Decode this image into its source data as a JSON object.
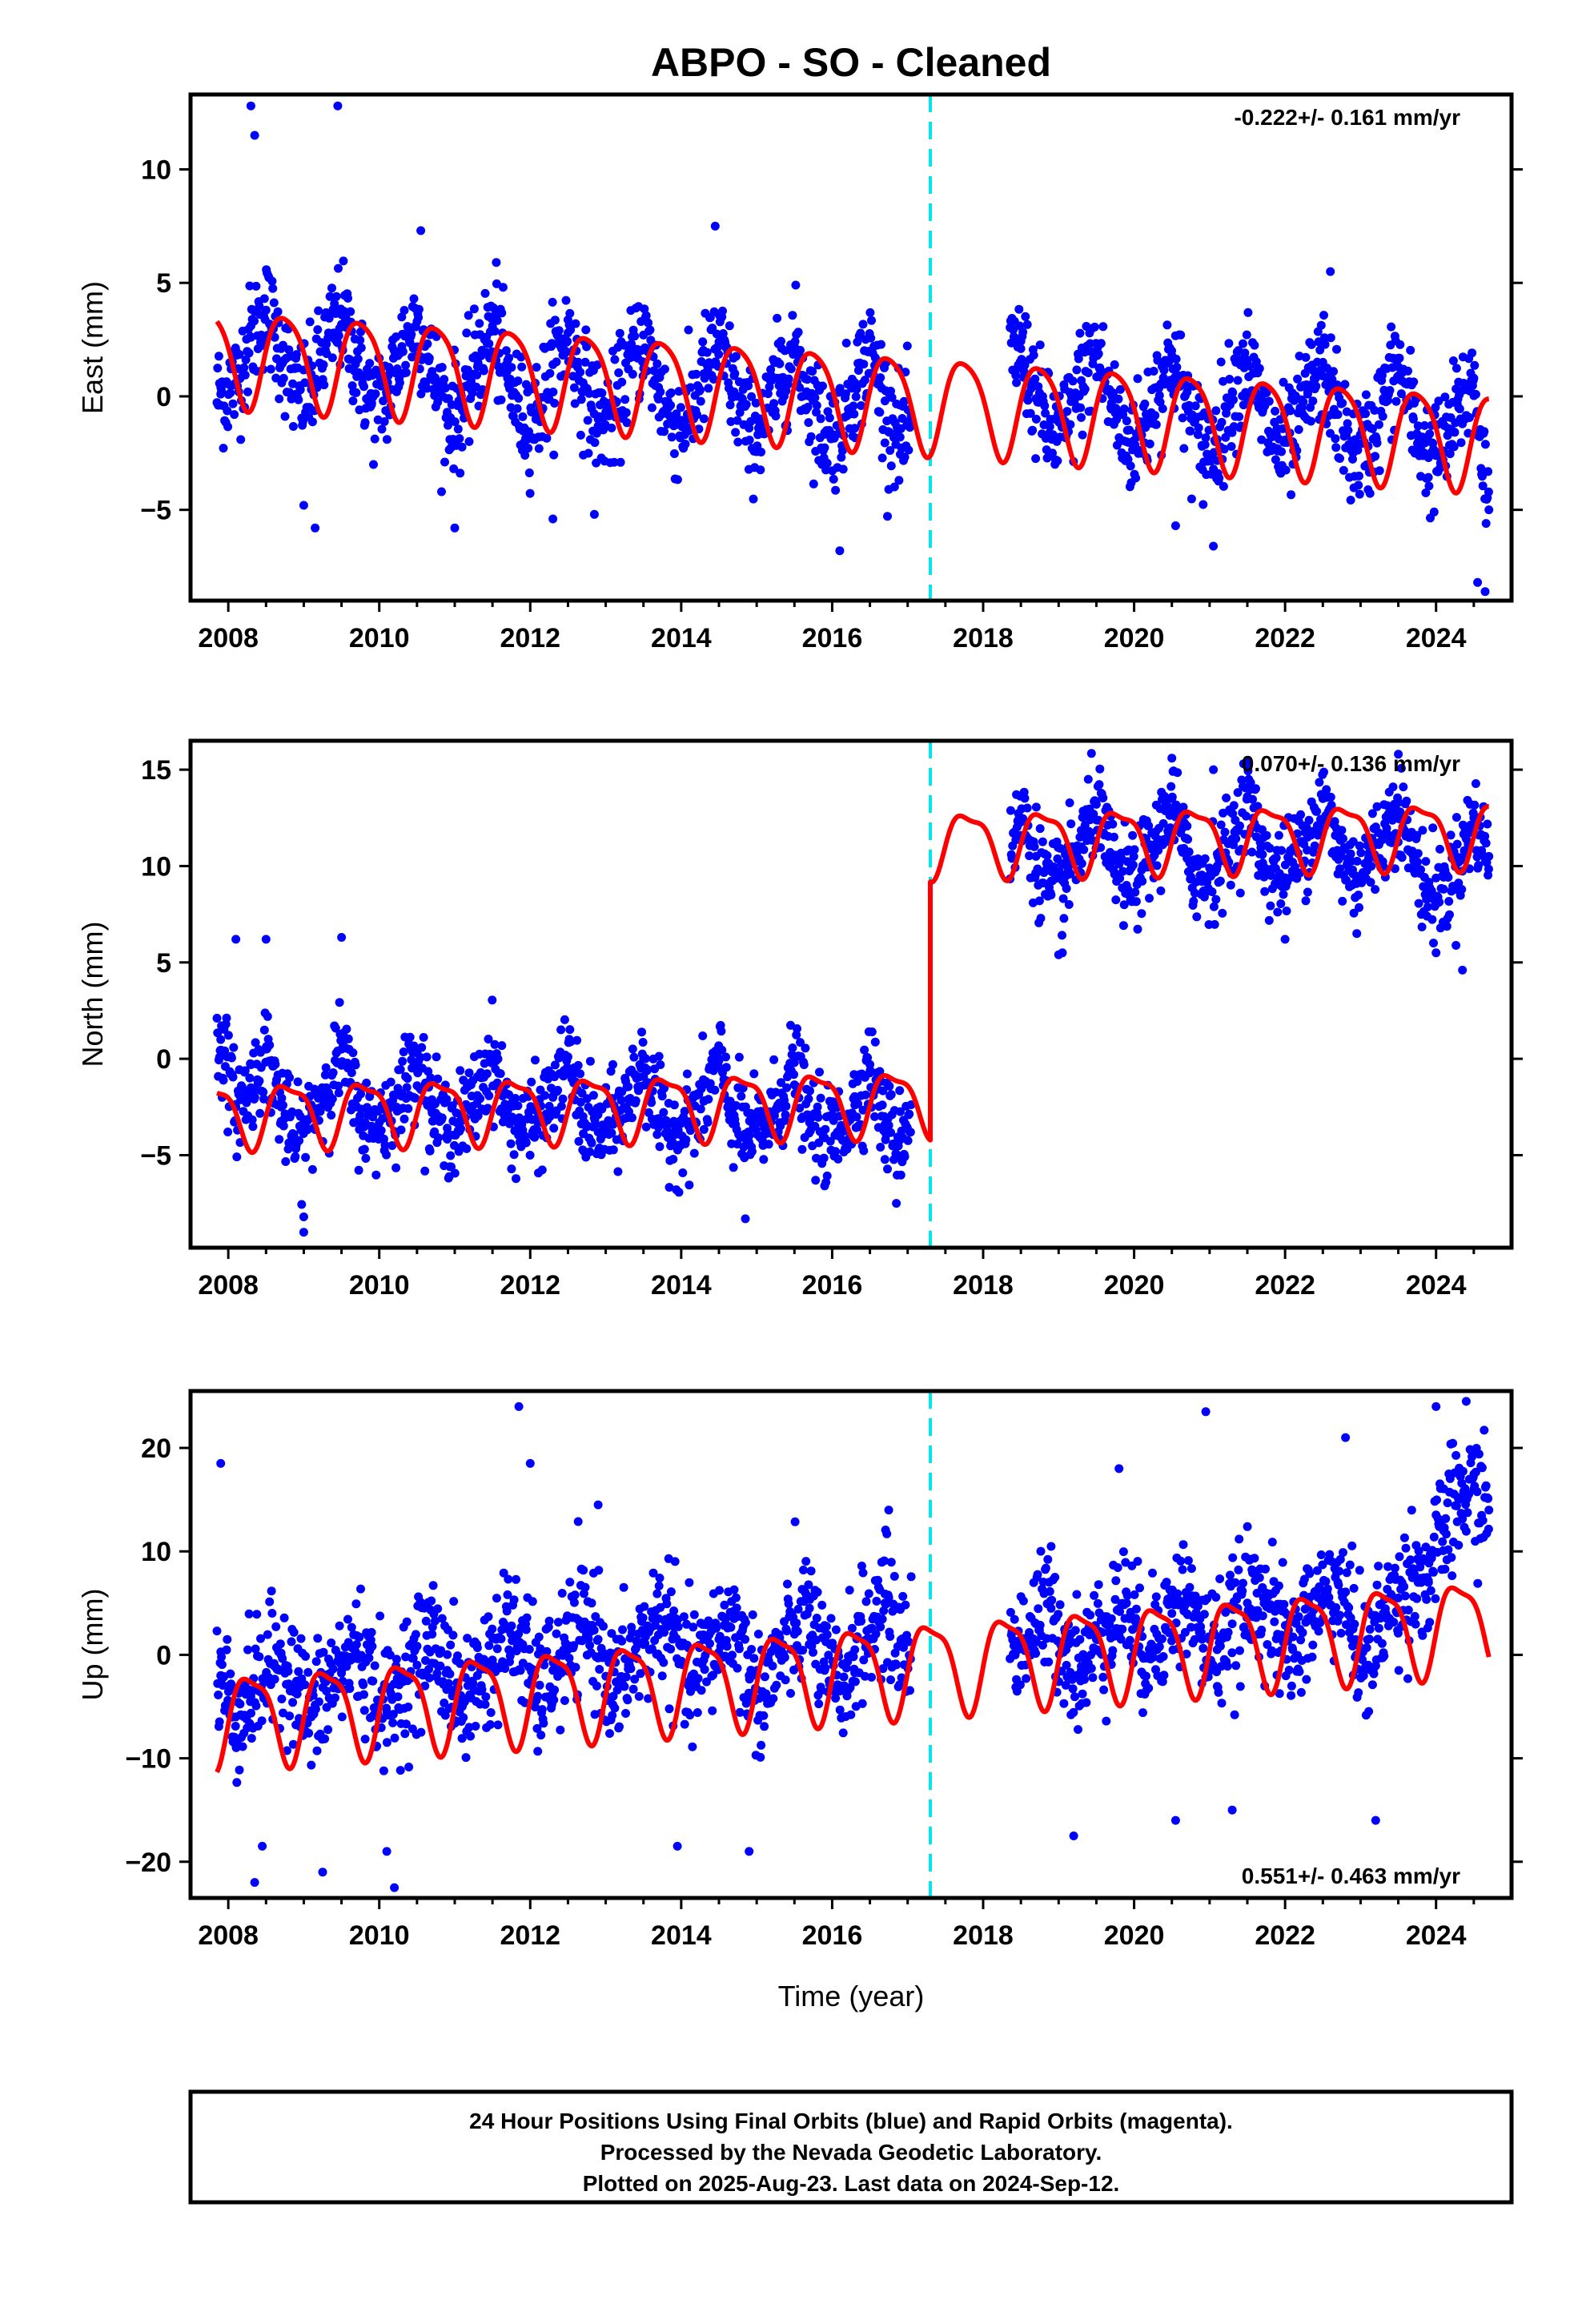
{
  "figure": {
    "title": "ABPO  - SO - Cleaned",
    "xlabel": "Time (year)",
    "footer": [
      "24 Hour Positions Using Final Orbits (blue) and Rapid Orbits (magenta).",
      "Processed by the Nevada Geodetic Laboratory.",
      "Plotted on 2025-Aug-23. Last data on 2024-Sep-12."
    ],
    "colors": {
      "points": "#0000ff",
      "model": "#ff0000",
      "event": "#00e5ee",
      "frame": "#000000"
    }
  },
  "chart_data": [
    {
      "type": "scatter",
      "component": "east",
      "ylabel": "East (mm)",
      "rate": "-0.222+/- 0.161 mm/yr",
      "rate_position": "top-right",
      "xlim": [
        2007.5,
        2025.0
      ],
      "ylim": [
        -9,
        13.3
      ],
      "xticks": [
        2008,
        2010,
        2012,
        2014,
        2016,
        2018,
        2020,
        2022,
        2024
      ],
      "yticks": [
        -5,
        0,
        5,
        10
      ],
      "event_line_x": 2017.3,
      "data_span": [
        2007.85,
        2024.7
      ],
      "gap": [
        2017.05,
        2018.35
      ],
      "data_start": 2007.85,
      "data_end": 2024.7,
      "series": [
        {
          "name": "Final Orbits",
          "x": [
            2007.9,
            2008.1,
            2008.3,
            2008.5,
            2008.7,
            2008.9,
            2009.1,
            2009.3,
            2009.5,
            2009.7,
            2009.9,
            2010.1,
            2010.3,
            2010.5,
            2010.7,
            2010.9,
            2011.1,
            2011.3,
            2011.5,
            2011.7,
            2011.9,
            2012.1,
            2012.3,
            2012.5,
            2012.7,
            2012.9,
            2013.1,
            2013.3,
            2013.5,
            2013.7,
            2013.9,
            2014.1,
            2014.3,
            2014.5,
            2014.7,
            2014.9,
            2015.1,
            2015.3,
            2015.5,
            2015.7,
            2015.9,
            2016.1,
            2016.3,
            2016.5,
            2016.7,
            2016.9,
            2018.5,
            2018.7,
            2018.9,
            2019.1,
            2019.3,
            2019.5,
            2019.7,
            2019.9,
            2020.1,
            2020.3,
            2020.5,
            2020.7,
            2020.9,
            2021.1,
            2021.3,
            2021.5,
            2021.7,
            2021.9,
            2022.1,
            2022.3,
            2022.5,
            2022.7,
            2022.9,
            2023.1,
            2023.3,
            2023.5,
            2023.7,
            2023.9,
            2024.1,
            2024.3,
            2024.5,
            2024.7
          ],
          "y": [
            0.1,
            0.6,
            2.6,
            3.8,
            2.1,
            0.1,
            0.3,
            2.3,
            3.6,
            1.6,
            -0.3,
            0.1,
            2.2,
            3.3,
            1.1,
            -0.7,
            -0.6,
            1.6,
            3.1,
            0.8,
            -0.9,
            -0.7,
            1.4,
            2.8,
            0.6,
            -1.0,
            -0.8,
            1.2,
            2.7,
            0.4,
            -1.2,
            -1.0,
            1.0,
            2.4,
            0.2,
            -1.4,
            -1.2,
            0.8,
            2.2,
            0.0,
            -1.6,
            -1.4,
            0.6,
            2.0,
            -0.2,
            -1.8,
            2.1,
            -0.1,
            -1.7,
            -1.4,
            0.7,
            2.0,
            -0.3,
            -2.0,
            -1.7,
            0.4,
            1.8,
            -0.5,
            -2.2,
            -1.9,
            0.2,
            1.6,
            -0.7,
            -2.3,
            -2.0,
            0.1,
            1.5,
            -0.8,
            -2.5,
            -2.2,
            -0.1,
            1.3,
            -1.0,
            -2.7,
            -2.4,
            -0.5,
            0.8,
            -5.0
          ]
        }
      ],
      "outliers_x": [
        2008.3,
        2008.35,
        2009.45,
        2009.0,
        2009.15,
        2010.55,
        2011.0,
        2011.55,
        2012.3,
        2012.85,
        2014.45,
        2016.75,
        2016.1,
        2020.55,
        2021.05,
        2022.6,
        2024.55,
        2024.65
      ],
      "outliers_y": [
        12.8,
        11.5,
        12.8,
        -4.8,
        -5.8,
        7.3,
        -5.8,
        5.9,
        -5.4,
        -5.2,
        7.5,
        -4.1,
        -6.8,
        -5.7,
        -6.6,
        5.5,
        -8.2,
        -8.6
      ],
      "model": {
        "name": "Model",
        "segments": [
          {
            "x0": 2007.85,
            "x1": 2017.05,
            "offset": 1.8,
            "trend": -0.222,
            "amp": 2.1,
            "phase": 0.5,
            "semi": 0.5
          },
          {
            "x0": 2017.05,
            "x1": 2024.7,
            "offset": 1.8,
            "trend": -0.222,
            "amp": 2.1,
            "phase": 0.5,
            "semi": 0.5
          }
        ]
      }
    },
    {
      "type": "scatter",
      "component": "north",
      "ylabel": "North (mm)",
      "rate": "0.070+/- 0.136 mm/yr",
      "rate_position": "top-right",
      "xlim": [
        2007.5,
        2025.0
      ],
      "ylim": [
        -9.8,
        16.5
      ],
      "xticks": [
        2008,
        2010,
        2012,
        2014,
        2016,
        2018,
        2020,
        2022,
        2024
      ],
      "yticks": [
        -5,
        0,
        5,
        10,
        15
      ],
      "event_line_x": 2017.3,
      "data_span": [
        2007.85,
        2024.7
      ],
      "gap": [
        2017.05,
        2018.35
      ],
      "series": [
        {
          "name": "Final Orbits",
          "x": [
            2007.9,
            2008.1,
            2008.3,
            2008.5,
            2008.7,
            2008.9,
            2009.1,
            2009.3,
            2009.5,
            2009.7,
            2009.9,
            2010.1,
            2010.3,
            2010.5,
            2010.7,
            2010.9,
            2011.1,
            2011.3,
            2011.5,
            2011.7,
            2011.9,
            2012.1,
            2012.3,
            2012.5,
            2012.7,
            2012.9,
            2013.1,
            2013.3,
            2013.5,
            2013.7,
            2013.9,
            2014.1,
            2014.3,
            2014.5,
            2014.7,
            2014.9,
            2015.1,
            2015.3,
            2015.5,
            2015.7,
            2015.9,
            2016.1,
            2016.3,
            2016.5,
            2016.7,
            2016.9,
            2018.5,
            2018.7,
            2018.9,
            2019.1,
            2019.3,
            2019.5,
            2019.7,
            2019.9,
            2020.1,
            2020.3,
            2020.5,
            2020.7,
            2020.9,
            2021.1,
            2021.3,
            2021.5,
            2021.7,
            2021.9,
            2022.1,
            2022.3,
            2022.5,
            2022.7,
            2022.9,
            2023.1,
            2023.3,
            2023.5,
            2023.7,
            2023.9,
            2024.1,
            2024.3,
            2024.5,
            2024.7
          ],
          "y": [
            1.0,
            -2.5,
            -1.5,
            0.5,
            -2.5,
            -4.5,
            -3.0,
            -1.5,
            0.5,
            -2.5,
            -3.5,
            -3.0,
            -1.8,
            0.3,
            -2.8,
            -3.6,
            -3.2,
            -1.9,
            0.2,
            -2.9,
            -3.7,
            -3.3,
            -2.0,
            0.1,
            -3.0,
            -3.8,
            -3.4,
            -2.1,
            0.0,
            -3.1,
            -3.9,
            -3.5,
            -2.2,
            -0.1,
            -3.2,
            -4.0,
            -3.6,
            -2.3,
            -0.2,
            -3.3,
            -4.1,
            -3.7,
            -2.4,
            -0.3,
            -3.4,
            -4.2,
            12.5,
            10.5,
            8.5,
            9.5,
            11.0,
            13.2,
            10.2,
            9.0,
            9.8,
            11.2,
            13.5,
            10.4,
            9.2,
            10.0,
            11.4,
            13.6,
            10.6,
            9.4,
            10.2,
            11.5,
            13.5,
            10.8,
            9.6,
            10.3,
            11.6,
            13.3,
            10.5,
            8.5,
            8.8,
            10.2,
            12.5,
            10.5
          ]
        }
      ],
      "outliers_x": [
        2008.1,
        2008.5,
        2009.0,
        2009.0,
        2009.5,
        2014.85,
        2016.85,
        2019.0,
        2019.05,
        2020.5,
        2021.05,
        2021.5,
        2022.0,
        2022.95,
        2023.5,
        2024.0,
        2024.35
      ],
      "outliers_y": [
        6.2,
        6.2,
        -9.0,
        -8.2,
        6.3,
        -8.3,
        -7.5,
        5.4,
        5.5,
        15.6,
        15.0,
        15.4,
        6.2,
        6.5,
        15.8,
        5.5,
        4.6
      ],
      "model": {
        "name": "Model",
        "segments": [
          {
            "x0": 2007.85,
            "x1": 2017.3,
            "offset": -2.8,
            "trend": 0.07,
            "amp": 1.6,
            "phase": 0.55,
            "semi": 0.9
          },
          {
            "x0": 2017.3,
            "x1": 2024.7,
            "offset": 10.6,
            "trend": 0.07,
            "amp": 1.6,
            "phase": 0.55,
            "semi": 0.9
          }
        ]
      }
    },
    {
      "type": "scatter",
      "component": "up",
      "ylabel": "Up (mm)",
      "rate": "0.551+/- 0.463 mm/yr",
      "rate_position": "bottom-right",
      "xlim": [
        2007.5,
        2025.0
      ],
      "ylim": [
        -23.5,
        25.5
      ],
      "xticks": [
        2008,
        2010,
        2012,
        2014,
        2016,
        2018,
        2020,
        2022,
        2024
      ],
      "yticks": [
        -20,
        -10,
        0,
        10,
        20
      ],
      "event_line_x": 2017.3,
      "data_span": [
        2007.85,
        2024.7
      ],
      "gap": [
        2017.05,
        2018.35
      ],
      "series": [
        {
          "name": "Final Orbits",
          "x": [
            2007.9,
            2008.1,
            2008.3,
            2008.5,
            2008.7,
            2008.9,
            2009.1,
            2009.3,
            2009.5,
            2009.7,
            2009.9,
            2010.1,
            2010.3,
            2010.5,
            2010.7,
            2010.9,
            2011.1,
            2011.3,
            2011.5,
            2011.7,
            2011.9,
            2012.1,
            2012.3,
            2012.5,
            2012.7,
            2012.9,
            2013.1,
            2013.3,
            2013.5,
            2013.7,
            2013.9,
            2014.1,
            2014.3,
            2014.5,
            2014.7,
            2014.9,
            2015.1,
            2015.3,
            2015.5,
            2015.7,
            2015.9,
            2016.1,
            2016.3,
            2016.5,
            2016.7,
            2016.9,
            2018.5,
            2018.7,
            2018.9,
            2019.1,
            2019.3,
            2019.5,
            2019.7,
            2019.9,
            2020.1,
            2020.3,
            2020.5,
            2020.7,
            2020.9,
            2021.1,
            2021.3,
            2021.5,
            2021.7,
            2021.9,
            2022.1,
            2022.3,
            2022.5,
            2022.7,
            2022.9,
            2023.1,
            2023.3,
            2023.5,
            2023.7,
            2023.9,
            2024.1,
            2024.3,
            2024.5,
            2024.7
          ],
          "y": [
            -2.0,
            -6.0,
            -4.0,
            -2.0,
            0.0,
            -3.0,
            -6.0,
            -3.5,
            -1.5,
            1.0,
            -2.5,
            -5.5,
            -2.5,
            -1.0,
            2.0,
            -1.5,
            -5.0,
            -2.0,
            -0.5,
            2.5,
            1.0,
            -4.0,
            -1.5,
            0.5,
            3.0,
            1.5,
            -4.0,
            -1.0,
            1.0,
            3.5,
            2.0,
            -3.0,
            -0.5,
            1.5,
            3.5,
            -2.0,
            -4.0,
            0.0,
            2.0,
            4.5,
            -1.5,
            -3.5,
            0.5,
            2.5,
            5.0,
            1.0,
            1.0,
            3.0,
            4.5,
            0.5,
            -1.5,
            1.5,
            3.5,
            5.0,
            0.0,
            2.0,
            4.0,
            5.5,
            1.5,
            0.5,
            3.0,
            5.0,
            6.5,
            2.0,
            0.5,
            3.5,
            5.5,
            7.0,
            2.5,
            -1.0,
            4.0,
            5.5,
            8.0,
            7.0,
            12.0,
            15.0,
            16.0,
            14.0
          ]
        }
      ],
      "outliers_x": [
        2007.9,
        2008.35,
        2008.45,
        2009.25,
        2010.1,
        2010.2,
        2011.85,
        2012.0,
        2012.9,
        2013.95,
        2014.9,
        2016.75,
        2019.2,
        2019.8,
        2020.55,
        2020.95,
        2021.3,
        2022.8,
        2023.2,
        2024.0,
        2024.4
      ],
      "outliers_y": [
        18.5,
        -22.0,
        -18.5,
        -21.0,
        -19.0,
        -22.5,
        24.0,
        18.5,
        14.5,
        -18.5,
        -19.0,
        14.0,
        -17.5,
        18.0,
        -16.0,
        23.5,
        -15.0,
        21.0,
        -16.0,
        24.0,
        24.5
      ],
      "model": {
        "name": "Model",
        "segments": [
          {
            "x0": 2007.85,
            "x1": 2017.05,
            "offset": -6.0,
            "trend": 0.551,
            "amp": 4.3,
            "phase": 0.05,
            "semi": 0.8
          },
          {
            "x0": 2017.05,
            "x1": 2024.7,
            "offset": -6.0,
            "trend": 0.551,
            "amp": 4.3,
            "phase": 0.05,
            "semi": 0.8
          }
        ]
      }
    }
  ]
}
